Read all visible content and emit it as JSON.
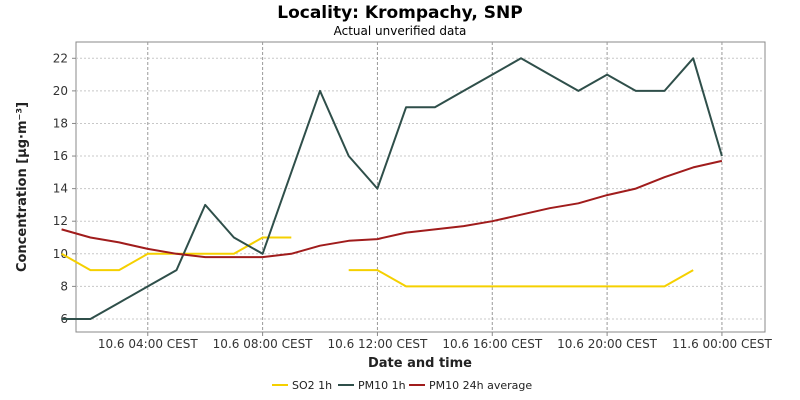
{
  "chart_data": {
    "type": "line",
    "title": "Locality: Krompachy, SNP",
    "subtitle": "Actual unverified data",
    "xlabel": "Date and time",
    "ylabel": "Concentration [µg·m⁻³]",
    "ylim": [
      5.2,
      23
    ],
    "yticks": [
      6,
      8,
      10,
      12,
      14,
      16,
      18,
      20,
      22
    ],
    "xlim_hours": [
      0.5,
      24.5
    ],
    "xticks": [
      {
        "hour": 3,
        "label": "10.6 04:00 CEST"
      },
      {
        "hour": 7,
        "label": "10.6 08:00 CEST"
      },
      {
        "hour": 11,
        "label": "10.6 12:00 CEST"
      },
      {
        "hour": 15,
        "label": "10.6 16:00 CEST"
      },
      {
        "hour": 19,
        "label": "10.6 20:00 CEST"
      },
      {
        "hour": 23,
        "label": "11.6 00:00 CEST"
      }
    ],
    "grid": true,
    "legend_position": "bottom",
    "series": [
      {
        "name": "SO2 1h",
        "color": "#f5d000",
        "points": [
          [
            0,
            10
          ],
          [
            1,
            9
          ],
          [
            2,
            9
          ],
          [
            3,
            10
          ],
          [
            4,
            10
          ],
          [
            5,
            10
          ],
          [
            6,
            10
          ],
          [
            7,
            11
          ],
          [
            8,
            11
          ],
          [
            10,
            9
          ],
          [
            11,
            9
          ],
          [
            12,
            8
          ],
          [
            13,
            8
          ],
          [
            14,
            8
          ],
          [
            15,
            8
          ],
          [
            16,
            8
          ],
          [
            17,
            8
          ],
          [
            18,
            8
          ],
          [
            19,
            8
          ],
          [
            20,
            8
          ],
          [
            21,
            8
          ],
          [
            22,
            9
          ]
        ]
      },
      {
        "name": "PM10 1h",
        "color": "#2f4f4a",
        "points": [
          [
            0,
            6
          ],
          [
            1,
            6
          ],
          [
            2,
            7
          ],
          [
            3,
            8
          ],
          [
            4,
            9
          ],
          [
            5,
            13
          ],
          [
            6,
            11
          ],
          [
            7,
            10
          ],
          [
            8,
            15
          ],
          [
            9,
            20
          ],
          [
            10,
            16
          ],
          [
            11,
            14
          ],
          [
            12,
            19
          ],
          [
            13,
            19
          ],
          [
            14,
            20
          ],
          [
            15,
            21
          ],
          [
            16,
            22
          ],
          [
            17,
            21
          ],
          [
            18,
            20
          ],
          [
            19,
            21
          ],
          [
            20,
            20
          ],
          [
            21,
            20
          ],
          [
            22,
            22
          ],
          [
            23,
            16
          ]
        ]
      },
      {
        "name": "PM10 24h average",
        "color": "#a01c1c",
        "points": [
          [
            0,
            11.5
          ],
          [
            1,
            11
          ],
          [
            2,
            10.7
          ],
          [
            3,
            10.3
          ],
          [
            4,
            10
          ],
          [
            5,
            9.8
          ],
          [
            6,
            9.8
          ],
          [
            7,
            9.8
          ],
          [
            8,
            10
          ],
          [
            9,
            10.5
          ],
          [
            10,
            10.8
          ],
          [
            11,
            10.9
          ],
          [
            12,
            11.3
          ],
          [
            13,
            11.5
          ],
          [
            14,
            11.7
          ],
          [
            15,
            12
          ],
          [
            16,
            12.4
          ],
          [
            17,
            12.8
          ],
          [
            18,
            13.1
          ],
          [
            19,
            13.6
          ],
          [
            20,
            14
          ],
          [
            21,
            14.7
          ],
          [
            22,
            15.3
          ],
          [
            23,
            15.7
          ]
        ]
      }
    ]
  }
}
